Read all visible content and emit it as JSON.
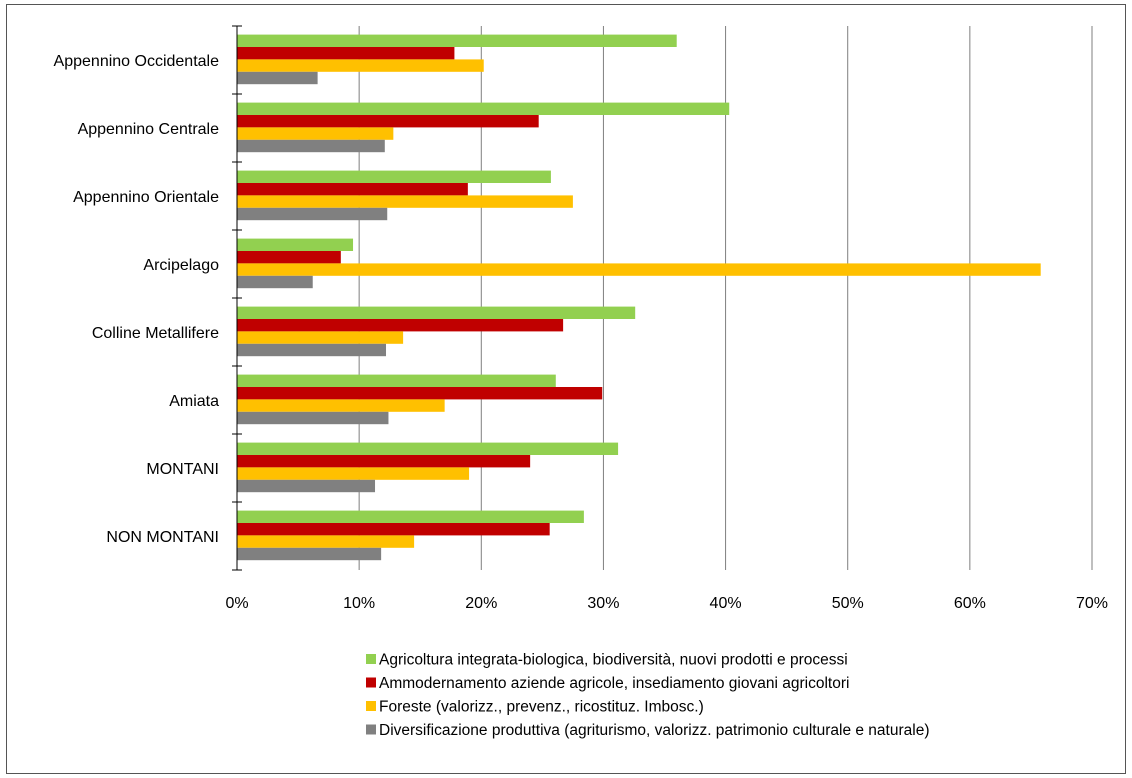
{
  "chart_data": {
    "type": "bar",
    "orientation": "horizontal",
    "categories": [
      "Appennino Occidentale",
      "Appennino Centrale",
      "Appennino Orientale",
      "Arcipelago",
      "Colline Metallifere",
      "Amiata",
      "MONTANI",
      "NON MONTANI"
    ],
    "series": [
      {
        "name": "Agricoltura integrata-biologica, biodiversità, nuovi prodotti e processi",
        "color": "#92d050",
        "values": [
          36.0,
          40.3,
          25.7,
          9.5,
          32.6,
          26.1,
          31.2,
          28.4
        ]
      },
      {
        "name": "Ammodernamento aziende agricole, insediamento giovani agricoltori",
        "color": "#c00000",
        "values": [
          17.8,
          24.7,
          18.9,
          8.5,
          26.7,
          29.9,
          24.0,
          25.6
        ]
      },
      {
        "name": "Foreste (valorizz., prevenz., ricostituz. Imbosc.)",
        "color": "#ffc000",
        "values": [
          20.2,
          12.8,
          27.5,
          65.8,
          13.6,
          17.0,
          19.0,
          14.5
        ]
      },
      {
        "name": "Diversificazione produttiva (agriturismo, valorizz. patrimonio culturale e naturale)",
        "color": "#808080",
        "values": [
          6.6,
          12.1,
          12.3,
          6.2,
          12.2,
          12.4,
          11.3,
          11.8
        ]
      }
    ],
    "xlim": [
      0,
      70
    ],
    "xticks": [
      0,
      10,
      20,
      30,
      40,
      50,
      60,
      70
    ],
    "xtick_labels": [
      "0%",
      "10%",
      "20%",
      "30%",
      "40%",
      "50%",
      "60%",
      "70%"
    ],
    "grid": true,
    "legend_position": "bottom"
  }
}
